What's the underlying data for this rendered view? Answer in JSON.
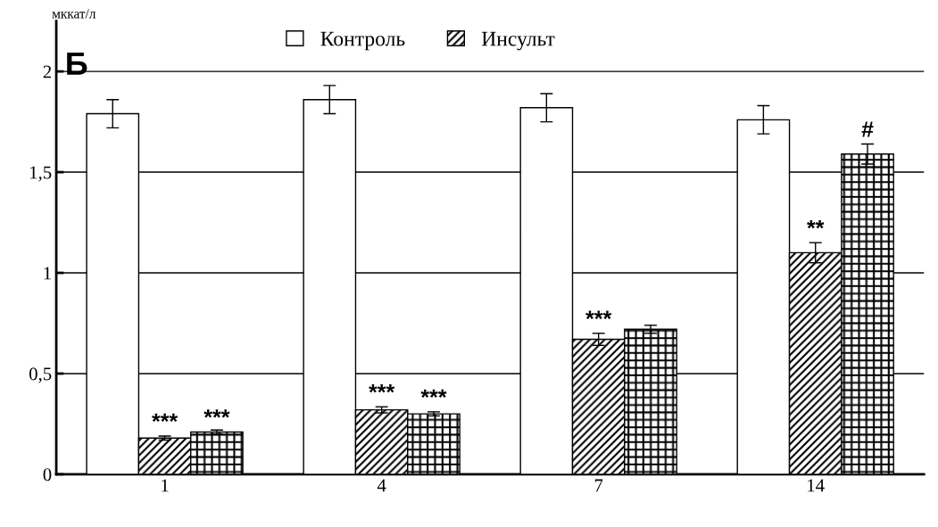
{
  "chart_data": {
    "type": "bar",
    "ylabel": "мккат/л",
    "categories": [
      "1",
      "4",
      "7",
      "14"
    ],
    "series": [
      {
        "name": "Контроль",
        "color": "#ffffff",
        "values": [
          1.79,
          1.86,
          1.82,
          1.76
        ],
        "errors": [
          0.07,
          0.07,
          0.07,
          0.07
        ]
      },
      {
        "name": "Инсульт",
        "color": "#000000",
        "values": [
          0.18,
          0.32,
          0.67,
          1.1
        ],
        "errors": [
          0.01,
          0.015,
          0.03,
          0.05
        ]
      },
      {
        "color": "#000000",
        "values": [
          0.21,
          0.3,
          0.72,
          1.59
        ],
        "errors": [
          0.01,
          0.01,
          0.02,
          0.05
        ]
      }
    ],
    "ylim": [
      0,
      2.25
    ],
    "yticks": [
      0,
      {
        "value": 0.5,
        "label": "0,5"
      },
      1,
      {
        "value": 1.5,
        "label": "1,5"
      },
      2
    ],
    "grid": "y",
    "legend": "top",
    "annotations": [
      "Б",
      {
        "text": "***",
        "x": "1",
        "y": 0.19
      },
      {
        "text": "***",
        "x": "1",
        "y": 0.21
      },
      {
        "text": "***",
        "x": "4",
        "y": 0.335
      },
      {
        "text": "***",
        "x": "4",
        "y": 0.31
      },
      {
        "text": "***",
        "x": "7",
        "y": 0.7
      },
      {
        "text": "**",
        "x": "14",
        "y": 1.15
      },
      "#"
    ]
  }
}
